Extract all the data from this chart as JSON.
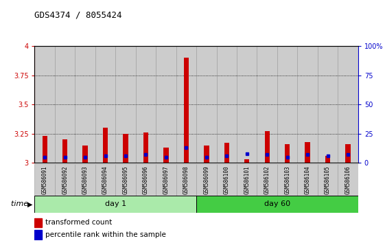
{
  "title": "GDS4374 / 8055424",
  "samples": [
    "GSM586091",
    "GSM586092",
    "GSM586093",
    "GSM586094",
    "GSM586095",
    "GSM586096",
    "GSM586097",
    "GSM586098",
    "GSM586099",
    "GSM586100",
    "GSM586101",
    "GSM586102",
    "GSM586103",
    "GSM586104",
    "GSM586105",
    "GSM586106"
  ],
  "red_values": [
    3.23,
    3.2,
    3.15,
    3.3,
    3.25,
    3.26,
    3.13,
    3.9,
    3.15,
    3.17,
    3.03,
    3.27,
    3.16,
    3.18,
    3.06,
    3.16
  ],
  "blue_values": [
    3.05,
    3.05,
    3.05,
    3.06,
    3.06,
    3.07,
    3.05,
    3.13,
    3.05,
    3.06,
    3.08,
    3.07,
    3.05,
    3.07,
    3.06,
    3.07
  ],
  "day1_samples": 8,
  "day60_samples": 8,
  "day1_label": "day 1",
  "day60_label": "day 60",
  "ymin": 3.0,
  "ymax": 4.0,
  "yticks": [
    3.0,
    3.25,
    3.5,
    3.75,
    4.0
  ],
  "ytick_labels": [
    "3",
    "3.25",
    "3.5",
    "3.75",
    "4"
  ],
  "right_yticks": [
    0,
    25,
    50,
    75,
    100
  ],
  "right_ytick_labels": [
    "0",
    "25",
    "50",
    "75",
    "100%"
  ],
  "red_color": "#cc0000",
  "blue_color": "#0000cc",
  "day1_bg": "#aaeaaa",
  "day60_bg": "#44cc44",
  "bar_bg": "#cccccc",
  "plot_bg": "#ffffff",
  "legend_red": "transformed count",
  "legend_blue": "percentile rank within the sample",
  "grid_lines": [
    3.25,
    3.5,
    3.75
  ]
}
